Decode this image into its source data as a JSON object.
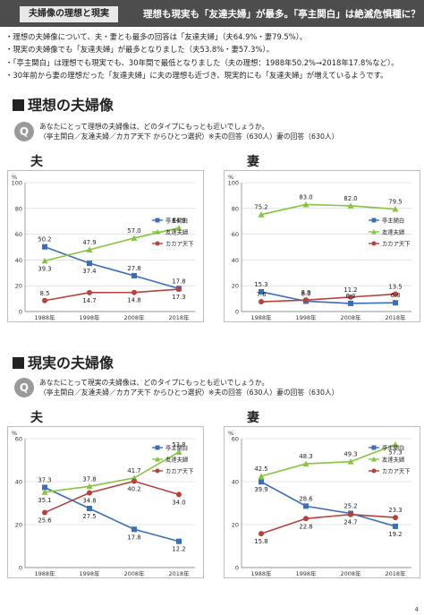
{
  "header": {
    "tag": "夫婦像の理想と現実",
    "title": "理想も現実も「友達夫婦」が最多。「亭主関白」は絶滅危惧種に？"
  },
  "bullets": [
    "理想の夫婦像について、夫・妻とも最多の回答は「友達夫婦」（夫64.9%・妻79.5%）。",
    "現実の夫婦像でも「友達夫婦」が最多となりました（夫53.8%・妻57.3%）。",
    "「亭主関白」は理想でも現実でも、30年間で最低となりました（夫の理想：1988年50.2%→2018年17.8%など）。",
    "30年前から妻の理想だった「友達夫婦」に夫の理想も近づき、現実的にも「友達夫婦」が増えているようです。"
  ],
  "sections": [
    {
      "title": "理想の夫婦像",
      "q_badge": "Q",
      "q_line1": "あなたにとって理想の夫婦像は、どのタイプにもっとも近いでしょうか。",
      "q_line2": "（亭主関白／友達夫婦／カカア天下 からひとつ選択）※夫の回答（630人）妻の回答（630人）"
    },
    {
      "title": "現実の夫婦像",
      "q_badge": "Q",
      "q_line1": "あなたにとって現実の夫婦像は、どのタイプにもっとも近いでしょうか。",
      "q_line2": "（亭主関白／友達夫婦／カカア天下 からひとつ選択）※夫の回答（630人）妻の回答（630人）"
    }
  ],
  "chart_data": [
    {
      "type": "line",
      "panel_label": "夫",
      "ylabel": "%",
      "ylim": [
        0,
        100
      ],
      "yticks": [
        "0",
        "20",
        "40",
        "60",
        "80",
        "100"
      ],
      "categories": [
        "1988年",
        "1998年",
        "2008年",
        "2018年"
      ],
      "series": [
        {
          "name": "亭主関白",
          "color": "#3a6fb8",
          "values": [
            50.2,
            37.4,
            27.8,
            17.8
          ],
          "labels": [
            "50.2",
            "37.4",
            "27.8",
            "17.8"
          ]
        },
        {
          "name": "友達夫婦",
          "color": "#86c440",
          "values": [
            39.3,
            47.9,
            57.0,
            64.9
          ],
          "labels": [
            "39.3",
            "47.9",
            "57.0",
            "64.9"
          ]
        },
        {
          "name": "カカア天下",
          "color": "#b8403a",
          "values": [
            8.5,
            14.7,
            14.8,
            17.3
          ],
          "labels": [
            "8.5",
            "14.7",
            "14.8",
            "17.3"
          ]
        }
      ]
    },
    {
      "type": "line",
      "panel_label": "妻",
      "ylabel": "%",
      "ylim": [
        0,
        100
      ],
      "yticks": [
        "0",
        "20",
        "40",
        "60",
        "80",
        "100"
      ],
      "categories": [
        "1988年",
        "1998年",
        "2008年",
        "2018年"
      ],
      "series": [
        {
          "name": "亭主関白",
          "color": "#3a6fb8",
          "values": [
            15.3,
            8.0,
            6.3,
            6.8
          ],
          "labels": [
            "15.3",
            "8.0",
            "6.3",
            "6.8"
          ]
        },
        {
          "name": "友達夫婦",
          "color": "#86c440",
          "values": [
            75.2,
            83.0,
            82.0,
            79.5
          ],
          "labels": [
            "75.2",
            "83.0",
            "82.0",
            "79.5"
          ]
        },
        {
          "name": "カカア天下",
          "color": "#b8403a",
          "values": [
            7.6,
            8.9,
            11.2,
            13.5
          ],
          "labels": [
            "7.6",
            "8.9",
            "11.2",
            "13.5"
          ]
        }
      ]
    },
    {
      "type": "line",
      "panel_label": "夫",
      "ylabel": "%",
      "ylim": [
        0,
        60
      ],
      "yticks": [
        "0",
        "20",
        "40",
        "60"
      ],
      "categories": [
        "1988年",
        "1998年",
        "2008年",
        "2018年"
      ],
      "series": [
        {
          "name": "亭主関白",
          "color": "#3a6fb8",
          "values": [
            37.3,
            27.5,
            17.8,
            12.2
          ],
          "labels": [
            "37.3",
            "27.5",
            "17.8",
            "12.2"
          ]
        },
        {
          "name": "友達夫婦",
          "color": "#86c440",
          "values": [
            35.1,
            37.8,
            41.7,
            53.8
          ],
          "labels": [
            "35.1",
            "37.8",
            "41.7",
            "53.8"
          ]
        },
        {
          "name": "カカア天下",
          "color": "#b8403a",
          "values": [
            25.6,
            34.8,
            40.2,
            34.0
          ],
          "labels": [
            "25.6",
            "34.8",
            "40.2",
            "34.0"
          ]
        }
      ]
    },
    {
      "type": "line",
      "panel_label": "妻",
      "ylabel": "%",
      "ylim": [
        0,
        60
      ],
      "yticks": [
        "0",
        "20",
        "40",
        "60"
      ],
      "categories": [
        "1988年",
        "1998年",
        "2008年",
        "2018年"
      ],
      "series": [
        {
          "name": "亭主関白",
          "color": "#3a6fb8",
          "values": [
            39.9,
            28.6,
            25.2,
            19.2
          ],
          "labels": [
            "39.9",
            "28.6",
            "25.2",
            "19.2"
          ]
        },
        {
          "name": "友達夫婦",
          "color": "#86c440",
          "values": [
            42.5,
            48.3,
            49.3,
            57.3
          ],
          "labels": [
            "42.5",
            "48.3",
            "49.3",
            "57.3"
          ]
        },
        {
          "name": "カカア天下",
          "color": "#b8403a",
          "values": [
            15.8,
            22.8,
            24.7,
            23.3
          ],
          "labels": [
            "15.8",
            "22.8",
            "24.7",
            "23.3"
          ]
        }
      ]
    }
  ],
  "page_number": "4"
}
